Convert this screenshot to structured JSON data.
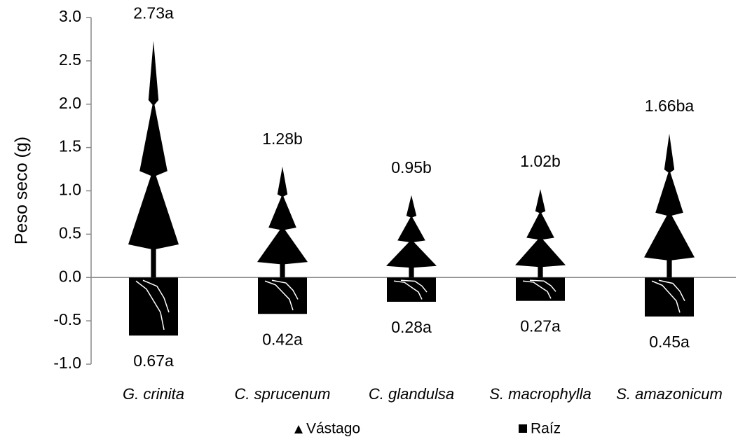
{
  "chart_data": {
    "type": "pictograph-bar",
    "y_label": "Peso seco (g)",
    "categories": [
      "G. crinita",
      "C. sprucenum",
      "C. glandulsa",
      "S. macrophylla",
      "S. amazonicum"
    ],
    "series": [
      {
        "name": "Vástago",
        "color": "#000000",
        "values": [
          2.73,
          1.28,
          0.95,
          1.02,
          1.66
        ],
        "value_labels": [
          "2.73a",
          "1.28b",
          "0.95b",
          "1.02b",
          "1.66ba"
        ]
      },
      {
        "name": "Raíz",
        "color": "#000000",
        "values": [
          -0.67,
          -0.42,
          -0.28,
          -0.27,
          -0.45
        ],
        "value_labels": [
          "0.67a",
          "0.42a",
          "0.28a",
          "0.27a",
          "0.45a"
        ]
      }
    ],
    "ylim": [
      -1,
      3
    ],
    "yticks": [
      {
        "value": 3,
        "label": "3.0"
      },
      {
        "value": 2.5,
        "label": "2.5"
      },
      {
        "value": 2,
        "label": "2.0"
      },
      {
        "value": 1.5,
        "label": "1.5"
      },
      {
        "value": 1,
        "label": "1.0"
      },
      {
        "value": 0.5,
        "label": "0.5"
      },
      {
        "value": 0,
        "label": "0.0"
      },
      {
        "value": -0.5,
        "label": "-0.5"
      },
      {
        "value": -1,
        "label": "-1.0"
      }
    ],
    "legend": "bottom"
  }
}
